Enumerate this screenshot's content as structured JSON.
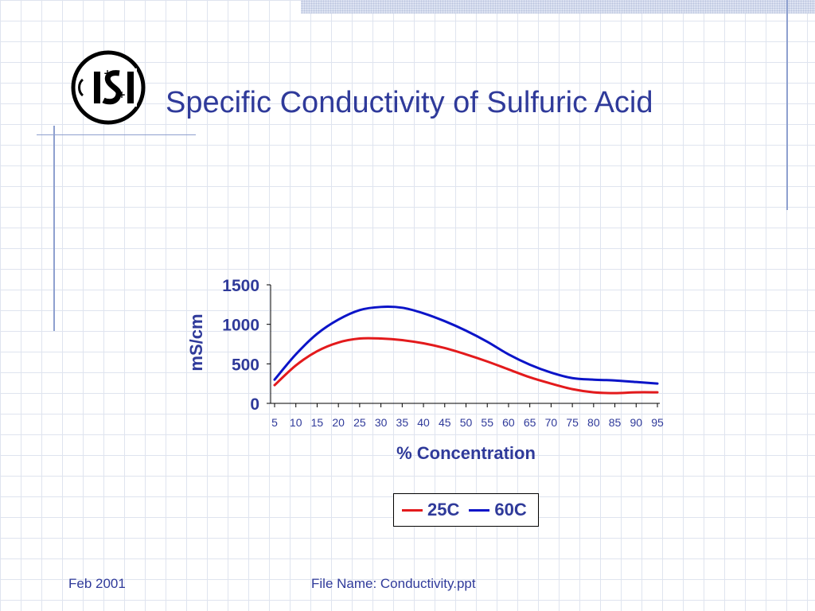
{
  "slide": {
    "title": "Specific Conductivity of Sulfuric Acid",
    "logo_text": "ISI",
    "footer_left": "Feb 2001",
    "footer_center": "File Name: Conductivity.ppt"
  },
  "chart_data": {
    "type": "line",
    "title": "",
    "xlabel": "% Concentration",
    "ylabel": "mS/cm",
    "x": [
      5,
      10,
      15,
      20,
      25,
      30,
      35,
      40,
      45,
      50,
      55,
      60,
      65,
      70,
      75,
      80,
      85,
      90,
      95
    ],
    "ylim": [
      0,
      1500
    ],
    "yticks": [
      0,
      500,
      1000,
      1500
    ],
    "series": [
      {
        "name": "25C",
        "color": "#e31a1c",
        "values": [
          230,
          480,
          660,
          770,
          820,
          820,
          800,
          760,
          700,
          620,
          530,
          430,
          330,
          250,
          180,
          140,
          130,
          140,
          140
        ]
      },
      {
        "name": "60C",
        "color": "#0b14c8",
        "values": [
          300,
          620,
          880,
          1060,
          1180,
          1220,
          1210,
          1140,
          1040,
          920,
          780,
          620,
          490,
          390,
          320,
          300,
          290,
          270,
          250
        ]
      }
    ],
    "legend_position": "bottom"
  }
}
